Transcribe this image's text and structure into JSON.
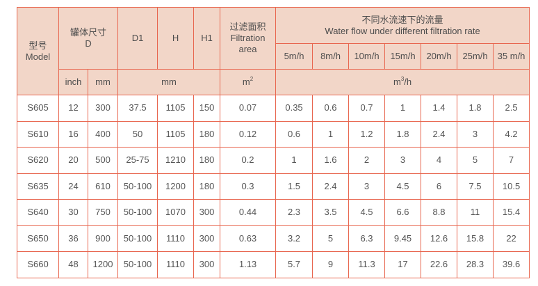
{
  "header": {
    "model": {
      "cn": "型号",
      "en": "Model"
    },
    "tank_size": {
      "cn": "罐体尺寸",
      "en": "D"
    },
    "d1": "D1",
    "h": "H",
    "h1": "H1",
    "filtration_area": {
      "cn": "过滤面积",
      "en1": "Filtration",
      "en2": "area"
    },
    "flow": {
      "cn": "不同水流速下的流量",
      "en": "Water flow under different filtration rate"
    },
    "rates": [
      "5m/h",
      "8m/h",
      "10m/h",
      "15m/h",
      "20m/h",
      "25m/h",
      "35 m/h"
    ],
    "units": {
      "inch": "inch",
      "mm": "mm",
      "dims_mm": "mm",
      "area": "m",
      "area_exp": "2",
      "flow": "m",
      "flow_exp": "3",
      "flow_suffix": "/h"
    }
  },
  "rows": [
    [
      "S605",
      "12",
      "300",
      "37.5",
      "1105",
      "150",
      "0.07",
      "0.35",
      "0.6",
      "0.7",
      "1",
      "1.4",
      "1.8",
      "2.5"
    ],
    [
      "S610",
      "16",
      "400",
      "50",
      "1105",
      "180",
      "0.12",
      "0.6",
      "1",
      "1.2",
      "1.8",
      "2.4",
      "3",
      "4.2"
    ],
    [
      "S620",
      "20",
      "500",
      "25-75",
      "1210",
      "180",
      "0.2",
      "1",
      "1.6",
      "2",
      "3",
      "4",
      "5",
      "7"
    ],
    [
      "S635",
      "24",
      "610",
      "50-100",
      "1200",
      "180",
      "0.3",
      "1.5",
      "2.4",
      "3",
      "4.5",
      "6",
      "7.5",
      "10.5"
    ],
    [
      "S640",
      "30",
      "750",
      "50-100",
      "1070",
      "300",
      "0.44",
      "2.3",
      "3.5",
      "4.5",
      "6.6",
      "8.8",
      "11",
      "15.4"
    ],
    [
      "S650",
      "36",
      "900",
      "50-100",
      "1110",
      "300",
      "0.63",
      "3.2",
      "5",
      "6.3",
      "9.45",
      "12.6",
      "15.8",
      "22"
    ],
    [
      "S660",
      "48",
      "1200",
      "50-100",
      "1110",
      "300",
      "1.13",
      "5.7",
      "9",
      "11.3",
      "17",
      "22.6",
      "28.3",
      "39.6"
    ]
  ],
  "colors": {
    "border": "#e8664f",
    "header_bg": "#f2d6c8",
    "text": "#555555"
  }
}
